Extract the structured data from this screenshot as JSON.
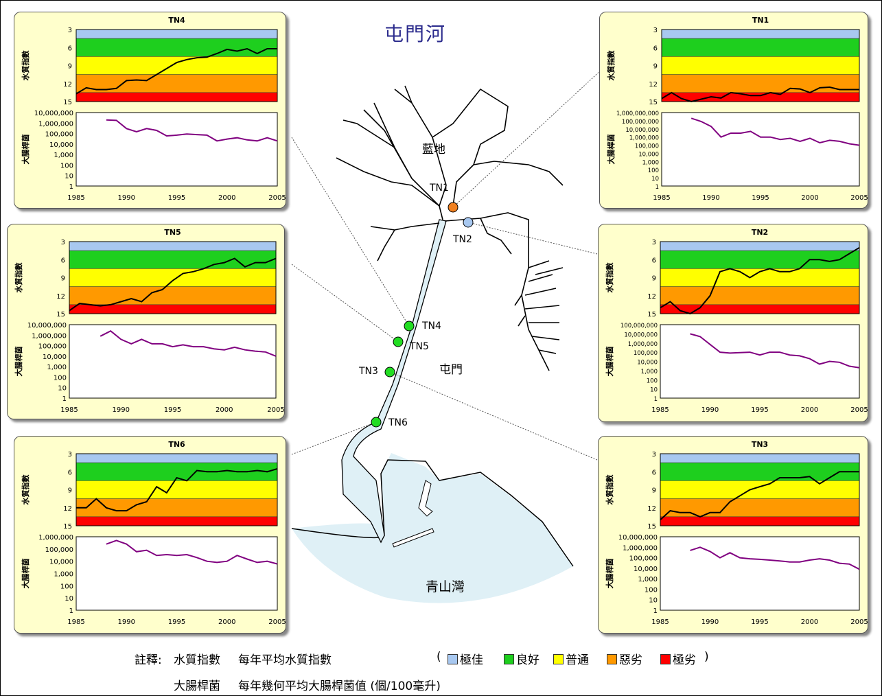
{
  "title": "屯門河",
  "places": {
    "lamdi": "藍地",
    "tuenmun": "屯門",
    "bay": "青山灣"
  },
  "stations": {
    "tn1": "TN1",
    "tn2": "TN2",
    "tn3": "TN3",
    "tn4": "TN4",
    "tn5": "TN5",
    "tn6": "TN6"
  },
  "axis_titles": {
    "wqi": "水質指數",
    "ecoli": "大腸桿菌"
  },
  "notes": {
    "label": "註釋:",
    "wqi_term": "水質指數",
    "wqi_desc": "每年平均水質指數",
    "ecoli_term": "大腸桿菌",
    "ecoli_desc": "每年幾何平均大腸桿菌值 (個/100毫升)",
    "open_paren": "(",
    "close_paren": ")"
  },
  "legend": [
    {
      "label": "極佳",
      "color": "#a8c8f0"
    },
    {
      "label": "良好",
      "color": "#1ecf1e"
    },
    {
      "label": "普通",
      "color": "#ffff00"
    },
    {
      "label": "惡劣",
      "color": "#ff9900"
    },
    {
      "label": "極劣",
      "color": "#ff0000"
    }
  ],
  "colors": {
    "wqi_line": "#000000",
    "ecoli_line": "#800080",
    "panel_bg": "#ffffcc",
    "water": "#dff0f6"
  },
  "chart_data": [
    {
      "type": "line",
      "title": "TN4",
      "x": [
        1985,
        1986,
        1987,
        1988,
        1989,
        1990,
        1991,
        1992,
        1993,
        1994,
        1995,
        1996,
        1997,
        1998,
        1999,
        2000,
        2001,
        2002,
        2003,
        2004,
        2005
      ],
      "wqi": [
        13.7,
        12.7,
        13,
        13,
        12.8,
        11.5,
        11.4,
        11.5,
        10.5,
        9.5,
        8.5,
        8,
        7.7,
        7.6,
        7,
        6.3,
        6.6,
        6.2,
        7,
        6.2,
        6.2
      ],
      "ecoli_x": [
        1988,
        1989,
        1990,
        1991,
        1992,
        1993,
        1994,
        1995,
        1996,
        1997,
        1998,
        1999,
        2000,
        2001,
        2002,
        2003,
        2004,
        2005
      ],
      "ecoli": [
        2000000,
        1800000,
        300000,
        150000,
        300000,
        200000,
        60000,
        70000,
        90000,
        80000,
        70000,
        20000,
        30000,
        40000,
        25000,
        20000,
        40000,
        20000
      ],
      "wqi_ylim": [
        15,
        3
      ],
      "wqi_ticks": [
        "3",
        "6",
        "9",
        "12",
        "15"
      ],
      "ecoli_ticks": [
        "10,000,000",
        "1,000,000",
        "100,000",
        "10,000",
        "1,000",
        "100",
        "10",
        "1"
      ],
      "ecoli_ylim": [
        1,
        10000000
      ],
      "xticks": [
        "1985",
        "1990",
        "1995",
        "2000",
        "2005"
      ]
    },
    {
      "type": "line",
      "title": "TN1",
      "x": [
        1985,
        1986,
        1987,
        1988,
        1989,
        1990,
        1991,
        1992,
        1993,
        1994,
        1995,
        1996,
        1997,
        1998,
        1999,
        2000,
        2001,
        2002,
        2003,
        2004,
        2005
      ],
      "wqi": [
        14.5,
        13.5,
        14.5,
        15,
        14.6,
        14.2,
        14.4,
        13.5,
        13.7,
        14,
        14,
        13.5,
        13.8,
        12.8,
        12.9,
        13.5,
        12.7,
        12.6,
        13,
        13,
        13
      ],
      "ecoli_x": [
        1988,
        1989,
        1990,
        1991,
        1992,
        1993,
        1994,
        1995,
        1996,
        1997,
        1998,
        1999,
        2000,
        2001,
        2002,
        2003,
        2004,
        2005
      ],
      "ecoli": [
        200000000,
        80000000,
        20000000,
        1000000,
        3000000,
        3000000,
        5000000,
        1000000,
        1000000,
        500000,
        700000,
        300000,
        700000,
        200000,
        400000,
        300000,
        150000,
        100000
      ],
      "wqi_ylim": [
        15,
        3
      ],
      "wqi_ticks": [
        "3",
        "6",
        "9",
        "12",
        "15"
      ],
      "ecoli_ticks": [
        "1,000,000,000",
        "100,000,000",
        "10,000,000",
        "1,000,000",
        "100,000",
        "10,000",
        "1,000",
        "100",
        "10",
        "1"
      ],
      "ecoli_ylim": [
        1,
        1000000000
      ],
      "xticks": [
        "1985",
        "1990",
        "1995",
        "2000",
        "2005"
      ]
    },
    {
      "type": "line",
      "title": "TN5",
      "x": [
        1985,
        1986,
        1987,
        1988,
        1989,
        1990,
        1991,
        1992,
        1993,
        1994,
        1995,
        1996,
        1997,
        1998,
        1999,
        2000,
        2001,
        2002,
        2003,
        2004,
        2005
      ],
      "wqi": [
        14.5,
        13.3,
        13.5,
        13.7,
        13.5,
        13,
        12.5,
        13,
        11.5,
        11,
        9.5,
        8.3,
        8,
        7.5,
        6.8,
        6.5,
        5.8,
        7.2,
        6.5,
        6.5,
        5.8
      ],
      "ecoli_x": [
        1988,
        1989,
        1990,
        1991,
        1992,
        1993,
        1994,
        1995,
        1996,
        1997,
        1998,
        1999,
        2000,
        2001,
        2002,
        2003,
        2004,
        2005
      ],
      "ecoli": [
        800000,
        2500000,
        400000,
        150000,
        400000,
        150000,
        150000,
        80000,
        120000,
        80000,
        80000,
        50000,
        40000,
        70000,
        40000,
        30000,
        25000,
        10000
      ],
      "wqi_ylim": [
        15,
        3
      ],
      "wqi_ticks": [
        "3",
        "6",
        "9",
        "12",
        "15"
      ],
      "ecoli_ticks": [
        "10,000,000",
        "1,000,000",
        "100,000",
        "10,000",
        "1,000",
        "100",
        "10",
        "1"
      ],
      "ecoli_ylim": [
        1,
        10000000
      ],
      "xticks": [
        "1985",
        "1990",
        "1995",
        "2000",
        "2005"
      ]
    },
    {
      "type": "line",
      "title": "TN2",
      "x": [
        1985,
        1986,
        1987,
        1988,
        1989,
        1990,
        1991,
        1992,
        1993,
        1994,
        1995,
        1996,
        1997,
        1998,
        1999,
        2000,
        2001,
        2002,
        2003,
        2004,
        2005
      ],
      "wqi": [
        14,
        13,
        14.5,
        15,
        14,
        12,
        8,
        7.5,
        8,
        9,
        8,
        7.5,
        8,
        8,
        7.5,
        6,
        6,
        6.3,
        6,
        5,
        4
      ],
      "ecoli_x": [
        1988,
        1989,
        1990,
        1991,
        1992,
        1993,
        1994,
        1995,
        1996,
        1997,
        1998,
        1999,
        2000,
        2001,
        2002,
        2003,
        2004,
        2005
      ],
      "ecoli": [
        10000000,
        5000000,
        700000,
        100000,
        80000,
        90000,
        100000,
        50000,
        100000,
        100000,
        50000,
        40000,
        20000,
        5000,
        10000,
        8000,
        3000,
        2000
      ],
      "wqi_ylim": [
        15,
        3
      ],
      "wqi_ticks": [
        "3",
        "6",
        "9",
        "12",
        "15"
      ],
      "ecoli_ticks": [
        "100,000,000",
        "10,000,000",
        "1,000,000",
        "100,000",
        "10,000",
        "1,000",
        "100",
        "10",
        "1"
      ],
      "ecoli_ylim": [
        1,
        100000000
      ],
      "xticks": [
        "1985",
        "1990",
        "1995",
        "2000",
        "2005"
      ]
    },
    {
      "type": "line",
      "title": "TN6",
      "x": [
        1985,
        1986,
        1987,
        1988,
        1989,
        1990,
        1991,
        1992,
        1993,
        1994,
        1995,
        1996,
        1997,
        1998,
        1999,
        2000,
        2001,
        2002,
        2003,
        2004,
        2005
      ],
      "wqi": [
        12,
        12,
        10.5,
        12,
        12.5,
        12.5,
        11.5,
        11,
        8.5,
        9.5,
        7,
        7.5,
        5.8,
        6,
        6,
        5.8,
        6,
        6,
        5.8,
        6,
        5.5
      ],
      "ecoli_x": [
        1988,
        1989,
        1990,
        1991,
        1992,
        1993,
        1994,
        1995,
        1996,
        1997,
        1998,
        1999,
        2000,
        2001,
        2002,
        2003,
        2004,
        2005
      ],
      "ecoli": [
        250000,
        500000,
        250000,
        60000,
        80000,
        30000,
        35000,
        30000,
        35000,
        20000,
        10000,
        8000,
        10000,
        30000,
        15000,
        8000,
        10000,
        6000
      ],
      "wqi_ylim": [
        15,
        3
      ],
      "wqi_ticks": [
        "3",
        "6",
        "9",
        "12",
        "15"
      ],
      "ecoli_ticks": [
        "1,000,000",
        "100,000",
        "10,000",
        "1,000",
        "100",
        "10",
        "1"
      ],
      "ecoli_ylim": [
        1,
        1000000
      ],
      "xticks": [
        "1985",
        "1990",
        "1995",
        "2000",
        "2005"
      ]
    },
    {
      "type": "line",
      "title": "TN3",
      "x": [
        1985,
        1986,
        1987,
        1988,
        1989,
        1990,
        1991,
        1992,
        1993,
        1994,
        1995,
        1996,
        1997,
        1998,
        1999,
        2000,
        2001,
        2002,
        2003,
        2004,
        2005
      ],
      "wqi": [
        14,
        12.5,
        12.8,
        12.8,
        13.5,
        12.8,
        12.8,
        11,
        10,
        9,
        8.5,
        8,
        7,
        7,
        7,
        6.8,
        8,
        7,
        6,
        6,
        6
      ],
      "ecoli_x": [
        1988,
        1989,
        1990,
        1991,
        1992,
        1993,
        1994,
        1995,
        1996,
        1997,
        1998,
        1999,
        2000,
        2001,
        2002,
        2003,
        2004,
        2005
      ],
      "ecoli": [
        500000,
        1000000,
        400000,
        100000,
        300000,
        100000,
        80000,
        70000,
        60000,
        50000,
        40000,
        40000,
        60000,
        80000,
        60000,
        30000,
        25000,
        8000
      ],
      "wqi_ylim": [
        15,
        3
      ],
      "wqi_ticks": [
        "3",
        "6",
        "9",
        "12",
        "15"
      ],
      "ecoli_ticks": [
        "10,000,000",
        "1,000,000",
        "100,000",
        "10,000",
        "1,000",
        "100",
        "10",
        "1"
      ],
      "ecoli_ylim": [
        1,
        10000000
      ],
      "xticks": [
        "1985",
        "1990",
        "1995",
        "2000",
        "2005"
      ]
    }
  ]
}
